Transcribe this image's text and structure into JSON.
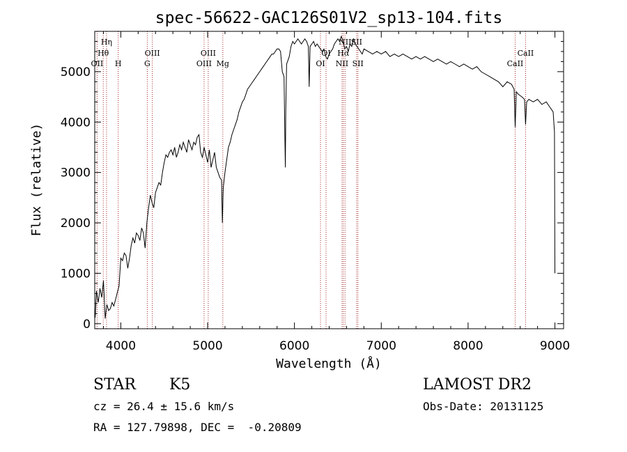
{
  "chart_data": {
    "type": "line",
    "title": "spec-56622-GAC126S01V2_sp13-104.fits",
    "xlabel": "Wavelength (Å)",
    "ylabel": "Flux (relative)",
    "xlim": [
      3700,
      9100
    ],
    "ylim": [
      -100,
      5800
    ],
    "xticks": [
      4000,
      5000,
      6000,
      7000,
      8000,
      9000
    ],
    "yticks": [
      0,
      1000,
      2000,
      3000,
      4000,
      5000
    ],
    "series": [
      {
        "name": "spectrum",
        "x": [
          3705,
          3720,
          3740,
          3760,
          3780,
          3800,
          3820,
          3840,
          3860,
          3880,
          3900,
          3920,
          3940,
          3960,
          3980,
          4000,
          4020,
          4040,
          4060,
          4080,
          4100,
          4120,
          4140,
          4160,
          4180,
          4200,
          4220,
          4240,
          4260,
          4280,
          4300,
          4320,
          4340,
          4360,
          4380,
          4400,
          4420,
          4440,
          4460,
          4480,
          4500,
          4520,
          4540,
          4560,
          4580,
          4600,
          4620,
          4640,
          4660,
          4680,
          4700,
          4720,
          4740,
          4760,
          4780,
          4800,
          4820,
          4840,
          4860,
          4880,
          4900,
          4920,
          4940,
          4960,
          4980,
          5000,
          5020,
          5040,
          5060,
          5080,
          5100,
          5120,
          5140,
          5160,
          5170,
          5180,
          5200,
          5220,
          5240,
          5260,
          5280,
          5300,
          5320,
          5340,
          5360,
          5380,
          5400,
          5420,
          5440,
          5460,
          5480,
          5500,
          5520,
          5540,
          5560,
          5580,
          5600,
          5620,
          5640,
          5660,
          5680,
          5700,
          5720,
          5740,
          5760,
          5780,
          5800,
          5820,
          5840,
          5860,
          5880,
          5890,
          5895,
          5900,
          5910,
          5920,
          5940,
          5960,
          5980,
          6000,
          6020,
          6040,
          6060,
          6080,
          6100,
          6120,
          6140,
          6160,
          6170,
          6180,
          6200,
          6220,
          6240,
          6260,
          6280,
          6300,
          6320,
          6340,
          6360,
          6380,
          6400,
          6420,
          6440,
          6460,
          6480,
          6500,
          6520,
          6540,
          6560,
          6580,
          6600,
          6620,
          6640,
          6660,
          6680,
          6700,
          6720,
          6740,
          6760,
          6780,
          6800,
          6850,
          6900,
          6950,
          7000,
          7050,
          7100,
          7150,
          7200,
          7250,
          7300,
          7350,
          7400,
          7450,
          7500,
          7550,
          7600,
          7650,
          7700,
          7750,
          7800,
          7850,
          7900,
          7950,
          8000,
          8050,
          8100,
          8150,
          8200,
          8250,
          8300,
          8350,
          8400,
          8450,
          8500,
          8530,
          8542,
          8555,
          8580,
          8620,
          8650,
          8662,
          8675,
          8700,
          8750,
          8800,
          8850,
          8900,
          8940,
          8960,
          8980,
          8995,
          9000
        ],
        "y": [
          120,
          650,
          420,
          700,
          520,
          850,
          100,
          380,
          260,
          300,
          420,
          350,
          480,
          620,
          750,
          1300,
          1250,
          1400,
          1350,
          1100,
          1300,
          1550,
          1700,
          1600,
          1800,
          1750,
          1650,
          1900,
          1800,
          1500,
          2000,
          2300,
          2550,
          2400,
          2300,
          2600,
          2700,
          2800,
          2750,
          3000,
          3200,
          3350,
          3300,
          3400,
          3450,
          3350,
          3500,
          3300,
          3400,
          3550,
          3450,
          3600,
          3500,
          3400,
          3650,
          3550,
          3450,
          3600,
          3550,
          3700,
          3750,
          3400,
          3300,
          3500,
          3350,
          3200,
          3450,
          3100,
          3250,
          3400,
          3100,
          3000,
          2900,
          2850,
          2000,
          2700,
          3000,
          3250,
          3500,
          3600,
          3750,
          3850,
          3950,
          4050,
          4200,
          4300,
          4400,
          4450,
          4550,
          4650,
          4700,
          4750,
          4800,
          4850,
          4900,
          4950,
          5000,
          5050,
          5100,
          5150,
          5200,
          5250,
          5300,
          5350,
          5350,
          5400,
          5450,
          5450,
          5400,
          5000,
          4900,
          3700,
          3100,
          4200,
          5150,
          5200,
          5300,
          5500,
          5600,
          5550,
          5600,
          5650,
          5600,
          5550,
          5600,
          5650,
          5600,
          5500,
          4700,
          5500,
          5550,
          5600,
          5500,
          5550,
          5500,
          5450,
          5400,
          5450,
          5300,
          5250,
          5350,
          5400,
          5450,
          5550,
          5600,
          5650,
          5600,
          5700,
          5600,
          5450,
          5500,
          5400,
          5550,
          5500,
          5650,
          5550,
          5500,
          5450,
          5400,
          5350,
          5450,
          5400,
          5350,
          5400,
          5350,
          5400,
          5300,
          5350,
          5300,
          5350,
          5300,
          5250,
          5300,
          5250,
          5300,
          5250,
          5200,
          5250,
          5200,
          5150,
          5200,
          5150,
          5100,
          5150,
          5100,
          5050,
          5100,
          5000,
          4950,
          4900,
          4850,
          4800,
          4700,
          4800,
          4750,
          4650,
          3900,
          4600,
          4550,
          4500,
          4450,
          3950,
          4400,
          4450,
          4400,
          4450,
          4350,
          4400,
          4300,
          4250,
          4200,
          3800,
          1000
        ]
      }
    ],
    "lines": [
      {
        "label": "OII",
        "x": 3727
      },
      {
        "label": "Hθ",
        "x": 3798
      },
      {
        "label": "Hη",
        "x": 3836
      },
      {
        "label": "H",
        "x": 3970
      },
      {
        "label": "G",
        "x": 4305
      },
      {
        "label": "OIII",
        "x": 4363
      },
      {
        "label": "OIII",
        "x": 4959
      },
      {
        "label": "OIII",
        "x": 5007
      },
      {
        "label": "Mg",
        "x": 5175
      },
      {
        "label": "OI",
        "x": 6300
      },
      {
        "label": "OI",
        "x": 6364
      },
      {
        "label": "NII",
        "x": 6548
      },
      {
        "label": "Hα",
        "x": 6563
      },
      {
        "label": "NII",
        "x": 6583
      },
      {
        "label": "SII",
        "x": 6716
      },
      {
        "label": "SII",
        "x": 6731
      },
      {
        "label": "CaII",
        "x": 8542
      },
      {
        "label": "CaII",
        "x": 8662
      }
    ]
  },
  "info": {
    "class": "STAR",
    "subclass": "K5",
    "survey": "LAMOST DR2",
    "cz": "cz = 26.4 ± 15.6 km/s",
    "obs_date": "Obs-Date: 20131125",
    "coords": "RA = 127.79898, DEC =  -0.20809"
  },
  "colors": {
    "axis": "#000000",
    "spectrum": "#000000",
    "line_marker": "#a02020",
    "background": "#ffffff"
  }
}
